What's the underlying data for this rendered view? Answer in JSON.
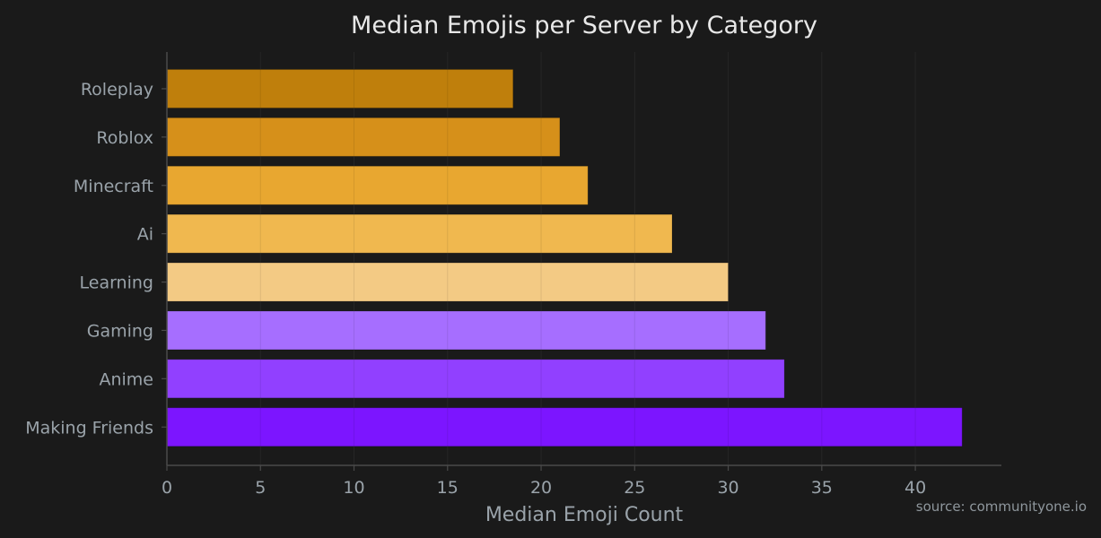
{
  "chart_data": {
    "type": "bar",
    "orientation": "horizontal",
    "title": "Median Emojis per Server by Category",
    "xlabel": "Median Emoji Count",
    "ylabel": "",
    "categories": [
      "Roleplay",
      "Roblox",
      "Minecraft",
      "Ai",
      "Learning",
      "Gaming",
      "Anime",
      "Making Friends"
    ],
    "values": [
      18.5,
      21,
      22.5,
      27,
      30,
      32,
      33,
      42.5
    ],
    "bar_colors": [
      "#bf7f0c",
      "#d6901a",
      "#e8a730",
      "#f0b84f",
      "#f3ca84",
      "#a66eff",
      "#9140ff",
      "#7c15ff"
    ],
    "xlim": [
      0,
      44.6
    ],
    "xticks": [
      0,
      5,
      10,
      15,
      20,
      25,
      30,
      35,
      40
    ],
    "grid": true,
    "source": "source: communityone.io"
  },
  "colors": {
    "background": "#1a1a1a",
    "axis": "#4a4a4a",
    "grid": "#2a2a2a"
  }
}
